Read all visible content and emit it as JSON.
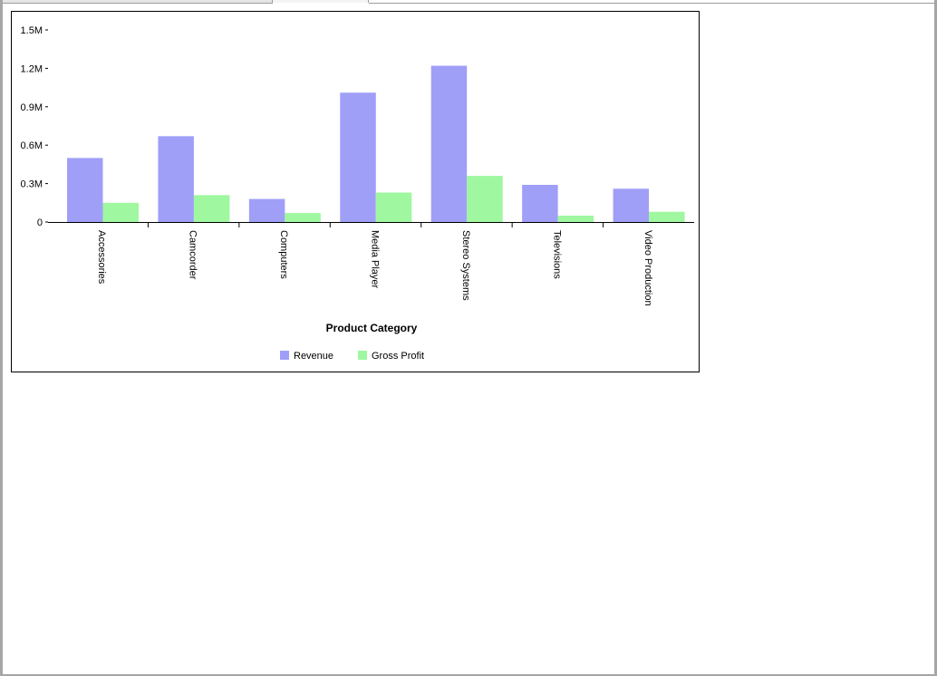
{
  "chart_data": {
    "type": "bar",
    "xlabel": "Product Category",
    "ylabel": "",
    "ylim": [
      0,
      1.5
    ],
    "yticks": [
      "0",
      "0.3M",
      "0.6M",
      "0.9M",
      "1.2M",
      "1.5M"
    ],
    "categories": [
      "Accessories",
      "Camcorder",
      "Computers",
      "Media Player",
      "Stereo Systems",
      "Televisions",
      "Video Production"
    ],
    "series": [
      {
        "name": "Revenue",
        "color": "#9f9ff8",
        "values": [
          0.5,
          0.67,
          0.18,
          1.01,
          1.22,
          0.29,
          0.26
        ]
      },
      {
        "name": "Gross Profit",
        "color": "#9ff89f",
        "values": [
          0.15,
          0.21,
          0.07,
          0.23,
          0.36,
          0.05,
          0.08
        ]
      }
    ],
    "legend_position": "bottom",
    "grid": false
  }
}
